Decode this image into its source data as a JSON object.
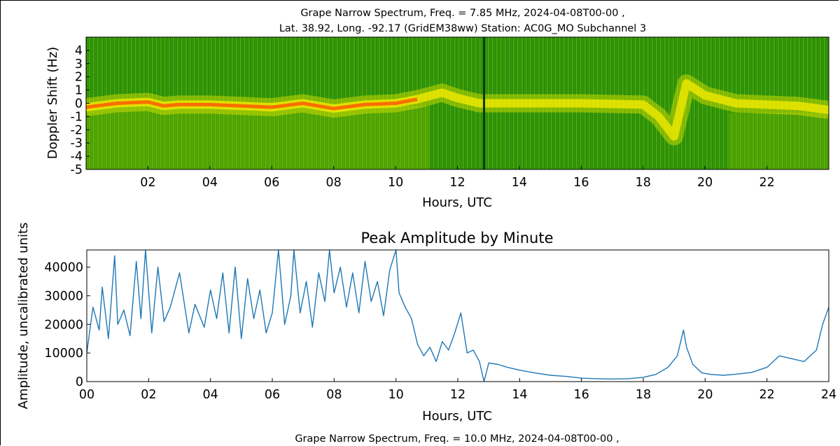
{
  "chart_data": [
    {
      "type": "heatmap",
      "title_line1": "Grape Narrow Spectrum, Freq. = 7.85 MHz, 2024-04-08T00-00 ,",
      "title_line2": "Lat.  38.92, Long. -92.17 (GridEM38ww) Station: AC0G_MO Subchannel 3",
      "xlabel": "Hours, UTC",
      "ylabel": "Doppler Shift (Hz)",
      "xlim": [
        0,
        24
      ],
      "ylim": [
        -5,
        5
      ],
      "xticks": [
        "02",
        "04",
        "06",
        "08",
        "10",
        "12",
        "14",
        "16",
        "18",
        "20",
        "22"
      ],
      "xtick_values": [
        2,
        4,
        6,
        8,
        10,
        12,
        14,
        16,
        18,
        20,
        22
      ],
      "yticks": [
        "4",
        "3",
        "2",
        "1",
        "0",
        "-1",
        "-2",
        "-3",
        "-4",
        "-5"
      ],
      "ytick_values": [
        4,
        3,
        2,
        1,
        0,
        -1,
        -2,
        -3,
        -4,
        -5
      ],
      "colors": {
        "background": "#1f8a0c",
        "band_low": "#e6e600",
        "band_high": "#ff5a00"
      },
      "doppler_trace": {
        "x": [
          0,
          1,
          2,
          2.5,
          3,
          4,
          5,
          6,
          7,
          8,
          9,
          10,
          10.7,
          11.5,
          12,
          12.7,
          13,
          14,
          16,
          18,
          18.5,
          19,
          19.4,
          20,
          21,
          22,
          23,
          24
        ],
        "y": [
          -0.3,
          0,
          0.1,
          -0.2,
          -0.1,
          -0.1,
          -0.2,
          -0.3,
          0,
          -0.4,
          -0.1,
          0,
          0.3,
          0.8,
          0.4,
          0,
          0,
          0,
          0,
          -0.1,
          -1,
          -2.5,
          1.5,
          0.6,
          0,
          -0.1,
          -0.2,
          -0.5
        ]
      }
    },
    {
      "type": "line",
      "title": "Peak Amplitude by Minute",
      "xlabel": "Hours, UTC",
      "ylabel": "Amplitude, uncalibrated units",
      "xlim": [
        0,
        24
      ],
      "ylim": [
        0,
        46000
      ],
      "xticks": [
        "00",
        "02",
        "04",
        "06",
        "08",
        "10",
        "12",
        "14",
        "16",
        "18",
        "20",
        "22",
        "24"
      ],
      "xtick_values": [
        0,
        2,
        4,
        6,
        8,
        10,
        12,
        14,
        16,
        18,
        20,
        22,
        24
      ],
      "yticks": [
        "0",
        "10000",
        "20000",
        "30000",
        "40000"
      ],
      "ytick_values": [
        0,
        10000,
        20000,
        30000,
        40000
      ],
      "color": "#1f77b4",
      "series": [
        {
          "x": [
            0,
            0.2,
            0.4,
            0.5,
            0.7,
            0.9,
            1.0,
            1.2,
            1.4,
            1.6,
            1.75,
            1.9,
            2.1,
            2.3,
            2.5,
            2.7,
            3.0,
            3.3,
            3.5,
            3.8,
            4.0,
            4.2,
            4.4,
            4.6,
            4.8,
            5.0,
            5.2,
            5.4,
            5.6,
            5.8,
            6.0,
            6.2,
            6.4,
            6.6,
            6.7,
            6.9,
            7.1,
            7.3,
            7.5,
            7.7,
            7.85,
            8.0,
            8.2,
            8.4,
            8.6,
            8.8,
            9.0,
            9.2,
            9.4,
            9.6,
            9.8,
            10.0,
            10.1,
            10.3,
            10.5,
            10.7,
            10.9,
            11.1,
            11.3,
            11.5,
            11.7,
            11.9,
            12.1,
            12.3,
            12.5,
            12.7,
            12.85,
            13.0,
            13.3,
            13.6,
            14.0,
            14.5,
            15.0,
            15.5,
            16.0,
            16.5,
            17.0,
            17.5,
            18.0,
            18.4,
            18.8,
            19.1,
            19.3,
            19.4,
            19.6,
            19.9,
            20.2,
            20.6,
            21.0,
            21.5,
            22.0,
            22.4,
            22.8,
            23.2,
            23.6,
            23.8,
            24.0
          ],
          "y": [
            10000,
            26000,
            18000,
            33000,
            15000,
            44000,
            20000,
            25000,
            16000,
            42000,
            22000,
            46000,
            17000,
            40000,
            21000,
            26000,
            38000,
            17000,
            27000,
            19000,
            32000,
            22000,
            38000,
            17000,
            40000,
            15000,
            36000,
            22000,
            32000,
            17000,
            24000,
            46000,
            20000,
            30000,
            46000,
            24000,
            35000,
            19000,
            38000,
            28000,
            46000,
            31000,
            40000,
            26000,
            38000,
            24000,
            42000,
            28000,
            35000,
            23000,
            39000,
            46000,
            31000,
            26000,
            22000,
            13000,
            9000,
            12000,
            7000,
            14000,
            11000,
            17000,
            24000,
            10000,
            11000,
            7000,
            0,
            6500,
            6000,
            5000,
            4000,
            3000,
            2200,
            1800,
            1200,
            1000,
            900,
            1000,
            1500,
            2500,
            5000,
            9000,
            18000,
            12000,
            6000,
            3000,
            2500,
            2200,
            2600,
            3200,
            5000,
            9000,
            8000,
            7000,
            11000,
            20000,
            26000
          ]
        }
      ]
    }
  ],
  "footer_title": "Grape Narrow Spectrum, Freq. = 10.0 MHz, 2024-04-08T00-00 ,"
}
